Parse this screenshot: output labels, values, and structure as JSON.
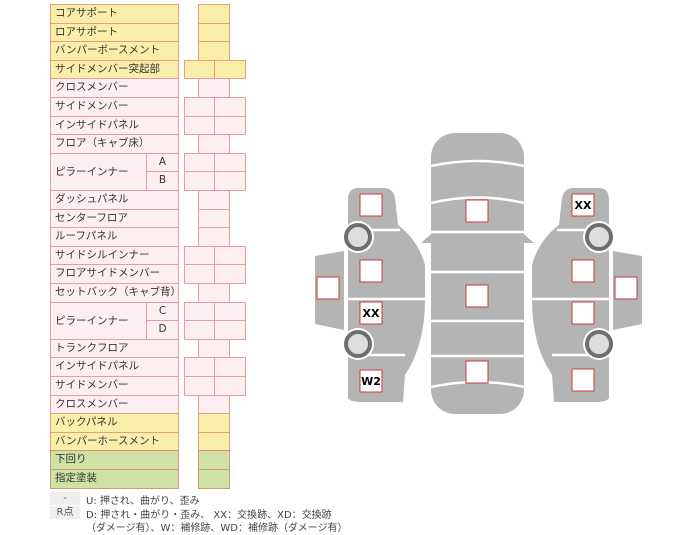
{
  "rows": [
    {
      "label": "コアサポート",
      "tone": "yellow",
      "cells": 1
    },
    {
      "label": "ロアサポート",
      "tone": "yellow",
      "cells": 1
    },
    {
      "label": "バンパーボースメント",
      "tone": "yellow",
      "cells": 1
    },
    {
      "label": "サイドメンバー突起部",
      "tone": "yellow",
      "cells": 2
    },
    {
      "label": "クロスメンバー",
      "tone": "pink",
      "cells": 1
    },
    {
      "label": "サイドメンバー",
      "tone": "pink",
      "cells": 2
    },
    {
      "label": "インサイドパネル",
      "tone": "pink",
      "cells": 2
    },
    {
      "label": "フロア（キャブ床）",
      "tone": "pink",
      "cells": 1
    },
    {
      "label": "ピラーインナー",
      "tone": "pink",
      "cells": 2,
      "subs": [
        "A",
        "B"
      ]
    },
    {
      "label": "ダッシュパネル",
      "tone": "pink",
      "cells": 1
    },
    {
      "label": "センターフロア",
      "tone": "pink",
      "cells": 1
    },
    {
      "label": "ルーフパネル",
      "tone": "pink",
      "cells": 1
    },
    {
      "label": "サイドシルインナー",
      "tone": "pink",
      "cells": 2
    },
    {
      "label": "フロアサイドメンバー",
      "tone": "pink",
      "cells": 2
    },
    {
      "label": "セットバック（キャブ背）",
      "tone": "pink",
      "cells": 1
    },
    {
      "label": "ピラーインナー",
      "tone": "pink",
      "cells": 2,
      "subs": [
        "C",
        "D"
      ]
    },
    {
      "label": "トランクフロア",
      "tone": "pink",
      "cells": 1
    },
    {
      "label": "インサイドパネル",
      "tone": "pink",
      "cells": 2
    },
    {
      "label": "サイドメンバー",
      "tone": "pink",
      "cells": 2
    },
    {
      "label": "クロスメンバー",
      "tone": "pink",
      "cells": 1
    },
    {
      "label": "バックパネル",
      "tone": "yellow",
      "cells": 1
    },
    {
      "label": "バンパーホースメント",
      "tone": "yellow",
      "cells": 1
    },
    {
      "label": "下回り",
      "tone": "green",
      "cells": 1
    },
    {
      "label": "指定塗装",
      "tone": "green",
      "cells": 1
    }
  ],
  "legend": {
    "key1": "-",
    "text1": "U: 押され、曲がり、歪み",
    "key2": "R点",
    "text2": "D: 押され・曲がり・歪み、 XX：交換跡、XD：交換跡",
    "text3": "（ダメージ有）、W：補修跡、WD：補修跡（ダメージ有）"
  },
  "diagram": {
    "markers": [
      "",
      "",
      "XX",
      "W2",
      "",
      "",
      "",
      "",
      "XX",
      "",
      "",
      "",
      ""
    ],
    "colors": {
      "body": "#b4b4b4",
      "marker_border": "#cc3a3a",
      "wheel": "#6e6e6e"
    }
  }
}
